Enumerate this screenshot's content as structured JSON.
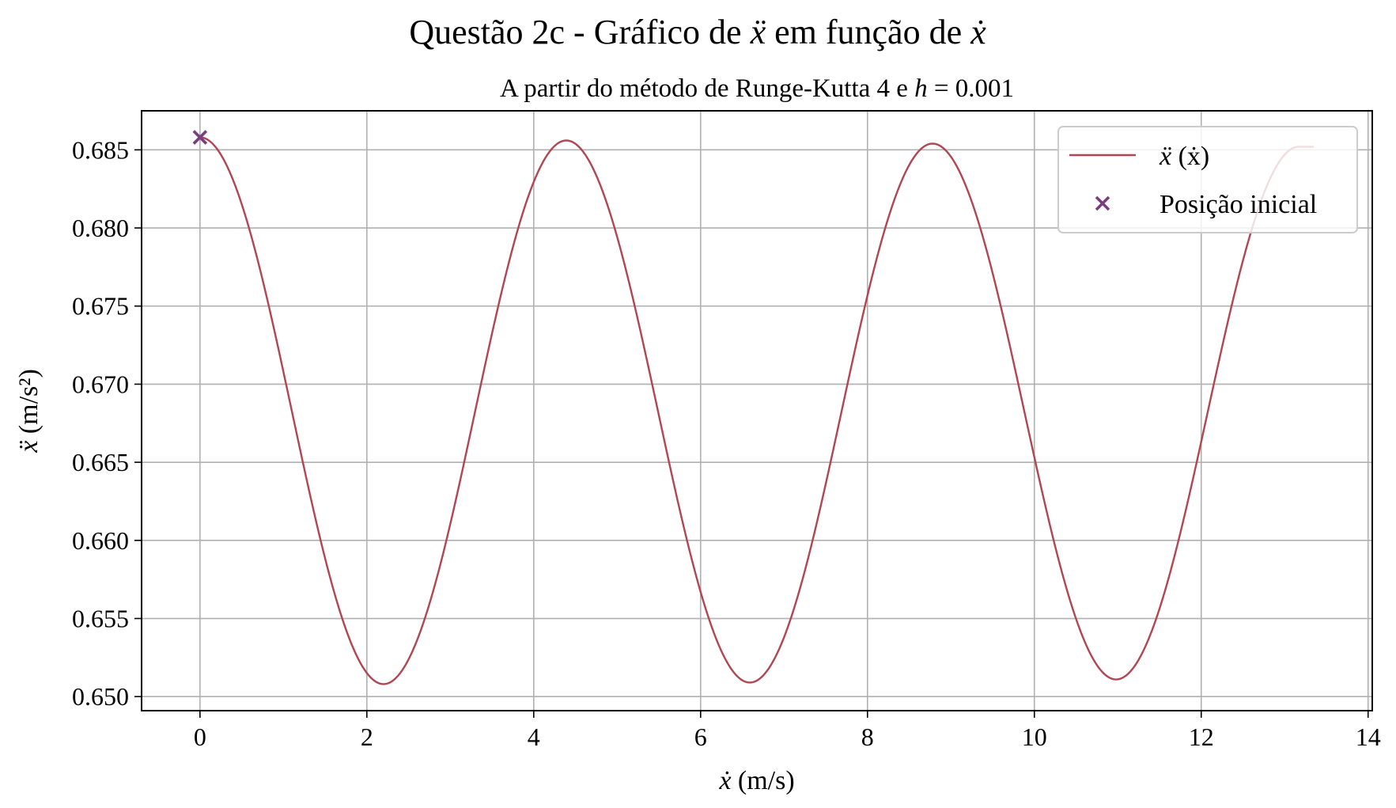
{
  "chart_data": {
    "type": "line",
    "title_text": "Questão 2c - Gráfico de",
    "title_var1": "ẍ",
    "title_mid": "em função de",
    "title_var2": "ẋ",
    "subtitle_text": "A partir do método de Runge-Kutta 4 e",
    "subtitle_var": "h",
    "subtitle_eq": "= 0.001",
    "xlabel_var": "ẋ",
    "xlabel_unit": "(m/s)",
    "ylabel_var": "ẍ",
    "ylabel_unit": "(m/s²)",
    "xlim": [
      -0.7,
      14.05
    ],
    "ylim": [
      0.6491,
      0.6875
    ],
    "x_ticks": [
      0,
      2,
      4,
      6,
      8,
      10,
      12,
      14
    ],
    "x_tick_labels": [
      "0",
      "2",
      "4",
      "6",
      "8",
      "10",
      "12",
      "14"
    ],
    "y_ticks": [
      0.65,
      0.655,
      0.66,
      0.665,
      0.67,
      0.675,
      0.68,
      0.685
    ],
    "y_tick_labels": [
      "0.650",
      "0.655",
      "0.660",
      "0.665",
      "0.670",
      "0.675",
      "0.680",
      "0.685"
    ],
    "grid": true,
    "legend_position": "top-right",
    "series": [
      {
        "name_var": "ẍ",
        "name_arg": "(ẋ)",
        "color": "#b04651",
        "x_range": [
          0,
          13.35
        ],
        "period": 4.39,
        "extrema": [
          {
            "x": 0.0,
            "y": 0.6858
          },
          {
            "x": 2.2,
            "y": 0.6508
          },
          {
            "x": 4.39,
            "y": 0.6856
          },
          {
            "x": 6.59,
            "y": 0.6509
          },
          {
            "x": 8.78,
            "y": 0.6854
          },
          {
            "x": 10.98,
            "y": 0.6511
          },
          {
            "x": 13.17,
            "y": 0.6852
          }
        ]
      }
    ],
    "markers": [
      {
        "name": "Posição inicial",
        "x": 0.0,
        "y": 0.6858,
        "color": "#7a3e7e",
        "symbol": "x"
      }
    ]
  }
}
